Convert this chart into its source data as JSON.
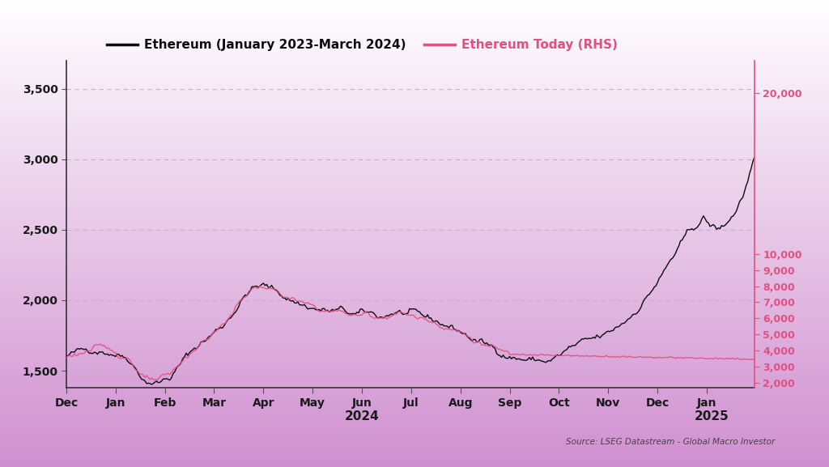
{
  "title_left": "Ethereum (January 2023-March 2024)",
  "title_right": "Ethereum Today (RHS)",
  "color_left": "#0d0d0d",
  "color_right": "#e05080",
  "plot_bg": "#e8c0e8",
  "fig_bg_top": "#cc88cc",
  "fig_bg_bottom": "#ffffff",
  "ylim_left": [
    1380,
    3700
  ],
  "ylim_right": [
    1700,
    22000
  ],
  "yticks_left": [
    1500,
    2000,
    2500,
    3000,
    3500
  ],
  "yticks_right": [
    2000,
    3000,
    4000,
    5000,
    6000,
    7000,
    8000,
    9000,
    10000,
    20000
  ],
  "xlabel_2024": "2024",
  "xlabel_2025": "2025",
  "source_text": "Source: LSEG Datastream - Global Macro Investor",
  "xtick_labels": [
    "Dec",
    "Jan",
    "Feb",
    "Mar",
    "Apr",
    "May",
    "Jun",
    "Jul",
    "Aug",
    "Sep",
    "Oct",
    "Nov",
    "Dec",
    "Jan"
  ],
  "month_ticks": [
    0,
    30,
    60,
    90,
    120,
    150,
    180,
    210,
    240,
    270,
    300,
    330,
    360,
    390
  ],
  "n_points": 420
}
